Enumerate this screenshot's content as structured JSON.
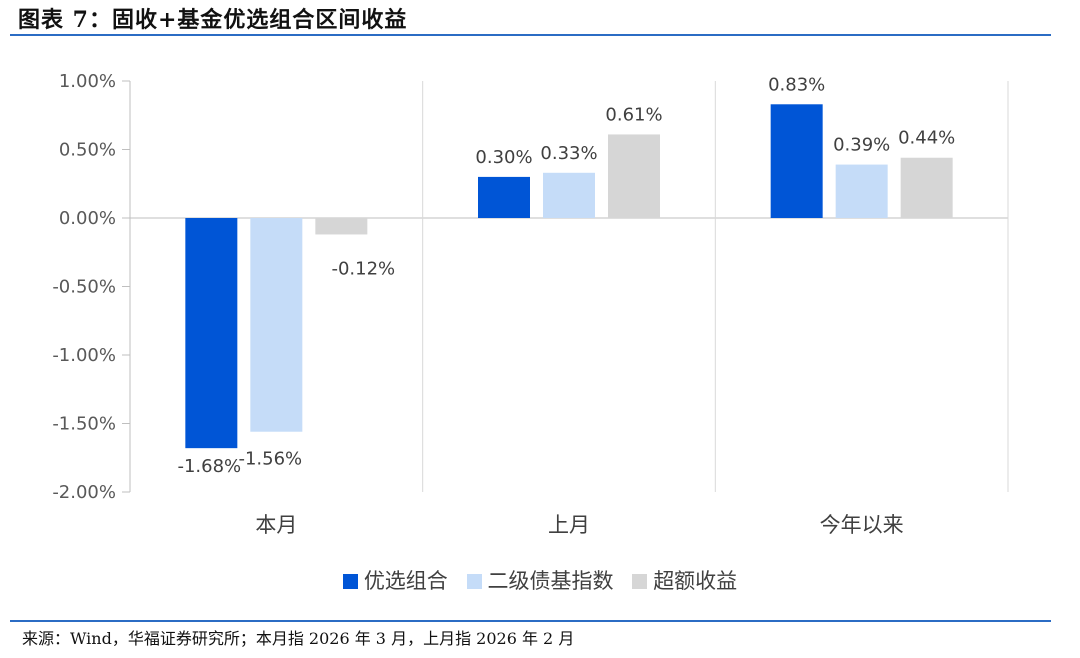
{
  "header": {
    "title": "图表 7：固收+基金优选组合区间收益"
  },
  "footer": {
    "source": "来源：Wind，华福证券研究所；本月指 2026 年 3 月，上月指 2026 年 2 月"
  },
  "colors": {
    "series1": "#0055d6",
    "series2": "#c5dcf8",
    "series3": "#d6d6d6"
  },
  "chart_data": {
    "type": "bar",
    "categories": [
      "本月",
      "上月",
      "今年以来"
    ],
    "series": [
      {
        "name": "优选组合",
        "values": [
          -1.68,
          0.3,
          0.83
        ],
        "labels": [
          "-1.68%",
          "0.30%",
          "0.83%"
        ]
      },
      {
        "name": "二级债基指数",
        "values": [
          -1.56,
          0.33,
          0.39
        ],
        "labels": [
          "-1.56%",
          "0.33%",
          "0.39%"
        ]
      },
      {
        "name": "超额收益",
        "values": [
          -0.12,
          0.61,
          0.44
        ],
        "labels": [
          "-0.12%",
          "0.61%",
          "0.44%"
        ]
      }
    ],
    "ylim": [
      -2.0,
      1.0
    ],
    "yticks": [
      "1.00%",
      "0.50%",
      "0.00%",
      "-0.50%",
      "-1.00%",
      "-1.50%",
      "-2.00%"
    ],
    "ytick_values": [
      1.0,
      0.5,
      0.0,
      -0.5,
      -1.0,
      -1.5,
      -2.0
    ],
    "legend_position": "bottom",
    "grid": false
  }
}
